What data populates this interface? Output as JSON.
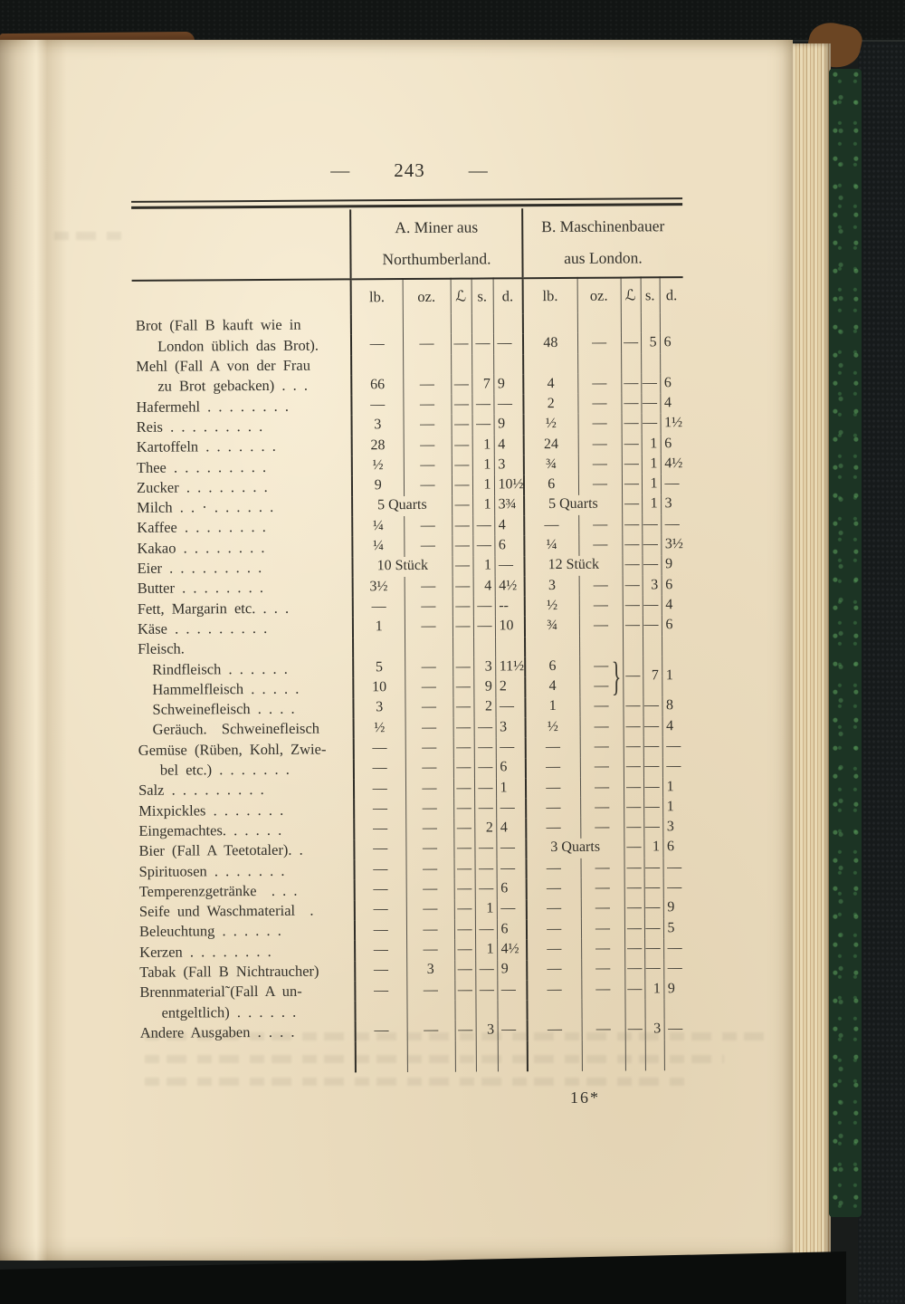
{
  "page": {
    "number": "243",
    "dash_left": "—",
    "dash_right": "—",
    "signature_mark": "16*"
  },
  "table": {
    "group_a": {
      "title_line1": "A. Miner aus",
      "title_line2": "Northumberland."
    },
    "group_b": {
      "title_line1": "B. Maschinenbauer",
      "title_line2": "aus London."
    },
    "unit_headers": [
      "lb.",
      "oz.",
      "ℒ",
      "s.",
      "d."
    ],
    "brace_glyph": "}",
    "rows": [
      {
        "label": "Brot (Fall B kauft wie in",
        "a": null,
        "b": null
      },
      {
        "label": "London üblich das Brot).",
        "indent": 2,
        "a": [
          "—",
          "—",
          "—",
          "—",
          "—"
        ],
        "b": [
          "48",
          "—",
          "—",
          "5",
          "6"
        ]
      },
      {
        "label": "Mehl (Fall A von der Frau",
        "a": null,
        "b": null
      },
      {
        "label": "zu Brot gebacken) . . .",
        "indent": 2,
        "a": [
          "66",
          "—",
          "—",
          "7",
          "9"
        ],
        "b": [
          "4",
          "—",
          "—",
          "—",
          "6"
        ]
      },
      {
        "label": "Hafermehl . . . . . . . .",
        "a": [
          "—",
          "—",
          "—",
          "—",
          "—"
        ],
        "b": [
          "2",
          "—",
          "—",
          "—",
          "4"
        ]
      },
      {
        "label": "Reis . . . . . . . . .",
        "a": [
          "3",
          "—",
          "—",
          "—",
          "9"
        ],
        "b": [
          "½",
          "—",
          "—",
          "—",
          "1½"
        ]
      },
      {
        "label": "Kartoffeln . . . . . . .",
        "a": [
          "28",
          "—",
          "—",
          "1",
          "4"
        ],
        "b": [
          "24",
          "—",
          "—",
          "1",
          "6"
        ]
      },
      {
        "label": "Thee . . . . . . . . .",
        "a": [
          "½",
          "—",
          "—",
          "1",
          "3"
        ],
        "b": [
          "¾",
          "—",
          "—",
          "1",
          "4½"
        ]
      },
      {
        "label": "Zucker . . . . . . . .",
        "a": [
          "9",
          "—",
          "—",
          "1",
          "10½"
        ],
        "b": [
          "6",
          "—",
          "—",
          "1",
          "—"
        ]
      },
      {
        "label": "Milch . . · . . . . . .",
        "a": [
          {
            "t": "5 Quarts",
            "cs": 2
          },
          "—",
          "1",
          "3¾"
        ],
        "b": [
          {
            "t": "5 Quarts",
            "cs": 2
          },
          "—",
          "1",
          "3"
        ]
      },
      {
        "label": "Kaffee . . . . . . . .",
        "a": [
          "¼",
          "—",
          "—",
          "—",
          "4"
        ],
        "b": [
          "—",
          "—",
          "—",
          "—",
          "—"
        ]
      },
      {
        "label": "Kakao . . . . . . . .",
        "a": [
          "¼",
          "—",
          "—",
          "—",
          "6"
        ],
        "b": [
          "¼",
          "—",
          "—",
          "—",
          "3½"
        ]
      },
      {
        "label": "Eier . . . . . . . . .",
        "a": [
          {
            "t": "10 Stück",
            "cs": 2
          },
          "—",
          "1",
          "—"
        ],
        "b": [
          {
            "t": "12 Stück",
            "cs": 2
          },
          "—",
          "—",
          "9"
        ]
      },
      {
        "label": "Butter . . . . . . . .",
        "a": [
          "3½",
          "—",
          "—",
          "4",
          "4½"
        ],
        "b": [
          "3",
          "—",
          "—",
          "3",
          "6"
        ]
      },
      {
        "label": "Fett, Margarin etc. . . .",
        "a": [
          "—",
          "—",
          "—",
          "—",
          "--"
        ],
        "b": [
          "½",
          "—",
          "—",
          "—",
          "4"
        ]
      },
      {
        "label": "Käse . . . . . . . . .",
        "a": [
          "1",
          "—",
          "—",
          "—",
          "10"
        ],
        "b": [
          "¾",
          "—",
          "—",
          "—",
          "6"
        ]
      },
      {
        "label": "Fleisch.",
        "a": null,
        "b": null
      },
      {
        "label": "Rindfleisch . . . . . .",
        "indent": 1,
        "a": [
          "5",
          "—",
          "—",
          "3",
          "11½"
        ],
        "b": [
          "6",
          "—",
          {
            "t": "—",
            "rs": 2,
            "brace": true
          },
          {
            "t": "7",
            "rs": 2
          },
          {
            "t": "1",
            "rs": 2
          }
        ]
      },
      {
        "label": "Hammelfleisch . . . . .",
        "indent": 1,
        "a": [
          "10",
          "—",
          "—",
          "9",
          "2"
        ],
        "b": [
          "4",
          "—",
          null,
          null,
          null
        ]
      },
      {
        "label": "Schweinefleisch . . . .",
        "indent": 1,
        "a": [
          "3",
          "—",
          "—",
          "2",
          "—"
        ],
        "b": [
          "1",
          "—",
          "—",
          "—",
          "8"
        ]
      },
      {
        "label": "Geräuch.  Schweinefleisch",
        "indent": 1,
        "a": [
          "½",
          "—",
          "—",
          "—",
          "3"
        ],
        "b": [
          "½",
          "—",
          "—",
          "—",
          "4"
        ]
      },
      {
        "label": "Gemüse (Rüben, Kohl, Zwie-",
        "a": [
          "—",
          "—",
          "—",
          "—",
          "—"
        ],
        "b": [
          "—",
          "—",
          "—",
          "—",
          "—"
        ]
      },
      {
        "label": "bel etc.) . . . . . . .",
        "indent": 2,
        "a": [
          "—",
          "—",
          "—",
          "—",
          "6"
        ],
        "b": [
          "—",
          "—",
          "—",
          "—",
          "—"
        ]
      },
      {
        "label": "Salz . . . . . . . . .",
        "a": [
          "—",
          "—",
          "—",
          "—",
          "1"
        ],
        "b": [
          "—",
          "—",
          "—",
          "—",
          "1"
        ]
      },
      {
        "label": "Mixpickles . . . . . . .",
        "a": [
          "—",
          "—",
          "—",
          "—",
          "—"
        ],
        "b": [
          "—",
          "—",
          "—",
          "—",
          "1"
        ]
      },
      {
        "label": "Eingemachtes. . . . . .",
        "a": [
          "—",
          "—",
          "—",
          "2",
          "4"
        ],
        "b": [
          "—",
          "—",
          "—",
          "—",
          "3"
        ]
      },
      {
        "label": "Bier (Fall A Teetotaler). .",
        "a": [
          "—",
          "—",
          "—",
          "—",
          "—"
        ],
        "b": [
          {
            "t": "3 Quarts",
            "cs": 2
          },
          "—",
          "1",
          "6"
        ]
      },
      {
        "label": "Spirituosen . . . . . . .",
        "a": [
          "—",
          "—",
          "—",
          "—",
          "—"
        ],
        "b": [
          "—",
          "—",
          "—",
          "—",
          "—"
        ]
      },
      {
        "label": "Temperenzgetränke  . . .",
        "a": [
          "—",
          "—",
          "—",
          "—",
          "6"
        ],
        "b": [
          "—",
          "—",
          "—",
          "—",
          "—"
        ]
      },
      {
        "label": "Seife und Waschmaterial  .",
        "a": [
          "—",
          "—",
          "—",
          "1",
          "—"
        ],
        "b": [
          "—",
          "—",
          "—",
          "—",
          "9"
        ]
      },
      {
        "label": "Beleuchtung . . . . . .",
        "a": [
          "—",
          "—",
          "—",
          "—",
          "6"
        ],
        "b": [
          "—",
          "—",
          "—",
          "—",
          "5"
        ]
      },
      {
        "label": "Kerzen . . . . . . . .",
        "a": [
          "—",
          "—",
          "—",
          "1",
          "4½"
        ],
        "b": [
          "—",
          "—",
          "—",
          "—",
          "—"
        ]
      },
      {
        "label": "Tabak (Fall B Nichtraucher)",
        "a": [
          "—",
          "3",
          "—",
          "—",
          "9"
        ],
        "b": [
          "—",
          "—",
          "—",
          "—",
          "—"
        ]
      },
      {
        "label": "Brennmaterial˜(Fall A un-",
        "a": [
          "—",
          "—",
          "—",
          "—",
          "—"
        ],
        "b": [
          "—",
          "—",
          "—",
          "1",
          "9"
        ]
      },
      {
        "label": "entgeltlich) . . . . . .",
        "indent": 2,
        "a": null,
        "b": null
      },
      {
        "label": "Andere Ausgaben . . . .",
        "a": [
          "—",
          "—",
          "—",
          "3",
          "—"
        ],
        "b": [
          "—",
          "—",
          "—",
          "3",
          "—"
        ]
      }
    ]
  },
  "colors": {
    "paper": "#eee0c3",
    "ink": "#33312b",
    "rule": "#55524a",
    "rule_heavy": "#2f2d27",
    "cover": "#161a1b",
    "marble": "#1c3424",
    "page_edge": "#e4d2ab"
  }
}
